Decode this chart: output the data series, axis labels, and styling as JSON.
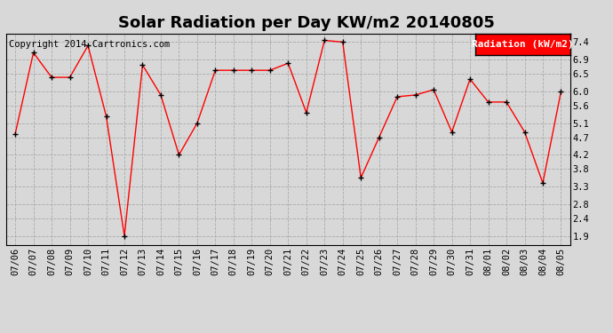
{
  "title": "Solar Radiation per Day KW/m2 20140805",
  "copyright": "Copyright 2014 Cartronics.com",
  "legend_label": "Radiation (kW/m2)",
  "dates": [
    "07/06",
    "07/07",
    "07/08",
    "07/09",
    "07/10",
    "07/11",
    "07/12",
    "07/13",
    "07/14",
    "07/15",
    "07/16",
    "07/17",
    "07/18",
    "07/19",
    "07/20",
    "07/21",
    "07/22",
    "07/23",
    "07/24",
    "07/25",
    "07/26",
    "07/27",
    "07/28",
    "07/29",
    "07/30",
    "07/31",
    "08/01",
    "08/02",
    "08/03",
    "08/04",
    "08/05"
  ],
  "values": [
    4.8,
    7.1,
    6.4,
    6.4,
    7.3,
    5.3,
    1.9,
    6.75,
    5.9,
    4.2,
    5.1,
    6.6,
    6.6,
    6.6,
    6.6,
    6.8,
    5.4,
    7.45,
    7.4,
    3.55,
    4.7,
    5.85,
    5.9,
    6.05,
    4.85,
    6.35,
    5.7,
    5.7,
    4.85,
    3.4,
    6.0
  ],
  "yticks": [
    1.9,
    2.4,
    2.8,
    3.3,
    3.8,
    4.2,
    4.7,
    5.1,
    5.6,
    6.0,
    6.5,
    6.9,
    7.4
  ],
  "ylim": [
    1.65,
    7.65
  ],
  "line_color": "red",
  "marker": "+",
  "marker_color": "black",
  "grid_color": "#aaaaaa",
  "background_color": "#d8d8d8",
  "plot_bg": "#d8d8d8",
  "legend_bg": "red",
  "legend_text_color": "white",
  "title_fontsize": 13,
  "tick_fontsize": 7.5,
  "copyright_fontsize": 7.5
}
